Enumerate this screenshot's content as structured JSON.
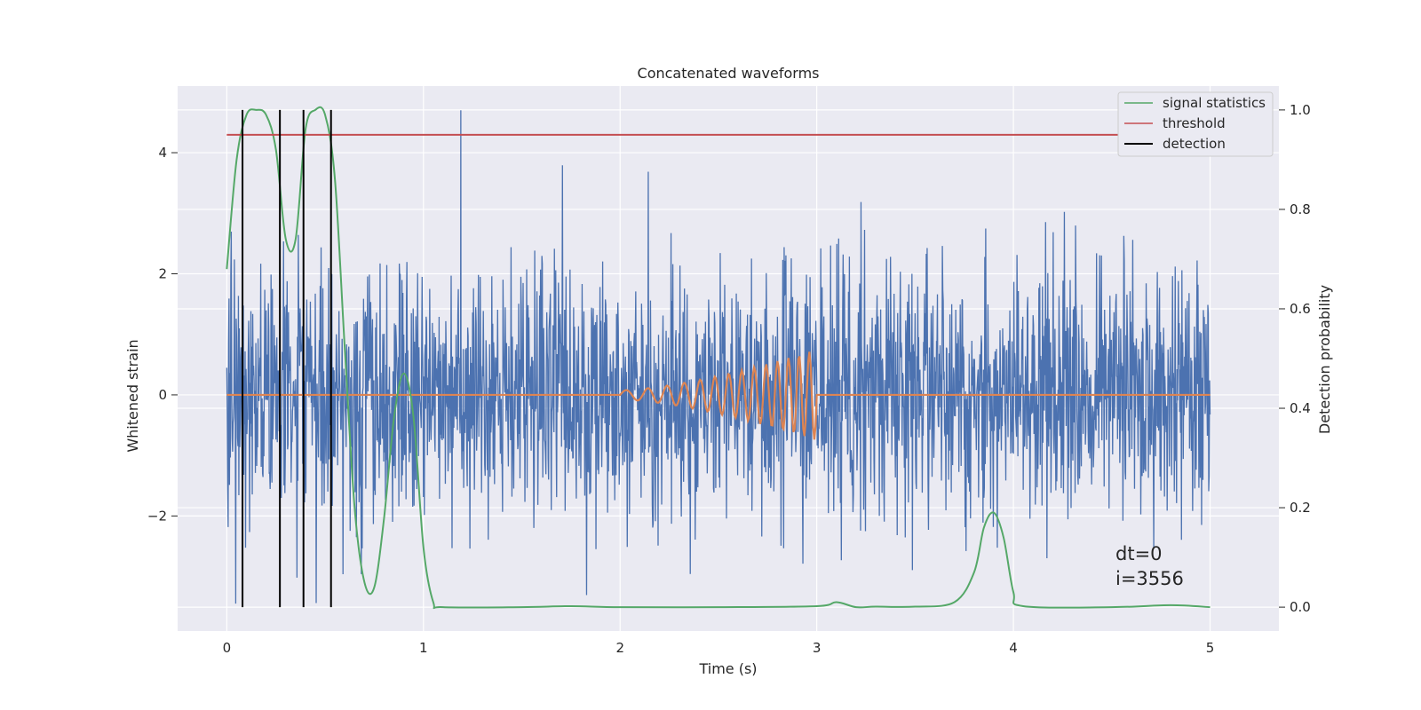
{
  "chart_data": {
    "type": "line",
    "title": "Concatenated waveforms",
    "xlabel": "Time (s)",
    "ylabel": "Whitened strain",
    "ylabel_right": "Detection probability",
    "xlim": [
      -0.25,
      5.35
    ],
    "ylim": [
      -3.9,
      5.1
    ],
    "ylim_right": [
      -0.048,
      1.048
    ],
    "xticks": [
      0,
      1,
      2,
      3,
      4,
      5
    ],
    "yticks": [
      -2,
      0,
      2,
      4
    ],
    "yticks_right": [
      0.0,
      0.2,
      0.4,
      0.6,
      0.8,
      1.0
    ],
    "grid": true,
    "legend_position": "top-right",
    "colors": {
      "strain": "#4c72b0",
      "injection": "#dd8452",
      "signal_statistics": "#55a868",
      "threshold": "#c44e52",
      "detection": "#000000",
      "axes_bg": "#eaeaf2",
      "grid": "#ffffff"
    },
    "series": [
      {
        "name": "signal statistics",
        "axis": "right",
        "color": "#55a868",
        "x": [
          0.0,
          0.05,
          0.1,
          0.15,
          0.2,
          0.25,
          0.3,
          0.35,
          0.4,
          0.45,
          0.5,
          0.55,
          0.6,
          0.65,
          0.7,
          0.75,
          0.8,
          0.85,
          0.9,
          0.95,
          1.0,
          1.05,
          1.1,
          1.5,
          1.75,
          2.0,
          2.5,
          3.0,
          3.1,
          3.2,
          3.3,
          3.5,
          3.7,
          3.8,
          3.85,
          3.9,
          3.95,
          4.0,
          4.05,
          4.5,
          4.8,
          5.0
        ],
        "y": [
          0.68,
          0.9,
          0.99,
          1.0,
          0.99,
          0.92,
          0.74,
          0.74,
          0.96,
          1.0,
          0.99,
          0.86,
          0.52,
          0.2,
          0.05,
          0.04,
          0.18,
          0.38,
          0.47,
          0.38,
          0.12,
          0.01,
          0.0,
          0.0,
          0.002,
          0.0,
          0.0,
          0.002,
          0.01,
          0.0,
          0.001,
          0.001,
          0.01,
          0.07,
          0.16,
          0.19,
          0.14,
          0.03,
          0.002,
          0.0,
          0.004,
          0.0
        ]
      },
      {
        "name": "threshold",
        "axis": "right",
        "color": "#c44e52",
        "x": [
          0.0,
          5.1
        ],
        "y": [
          0.95,
          0.95
        ]
      },
      {
        "name": "detection",
        "axis": "right",
        "color": "#000000",
        "type": "vlines",
        "x": [
          0.08,
          0.27,
          0.39,
          0.53
        ],
        "ymin": 0.0,
        "ymax": 1.0
      }
    ],
    "strain_noise": {
      "axis": "left",
      "x_range": [
        0,
        5
      ],
      "amplitude_range": [
        -3.5,
        4.7
      ],
      "description_color": "#4c72b0"
    },
    "injection": {
      "axis": "left",
      "x_range": [
        2.0,
        3.0
      ],
      "baseline": 0.0,
      "peak_amplitude": 0.75
    },
    "legend": [
      "signal statistics",
      "threshold",
      "detection"
    ],
    "annotations": [
      "dt=0",
      "i=3556"
    ]
  }
}
